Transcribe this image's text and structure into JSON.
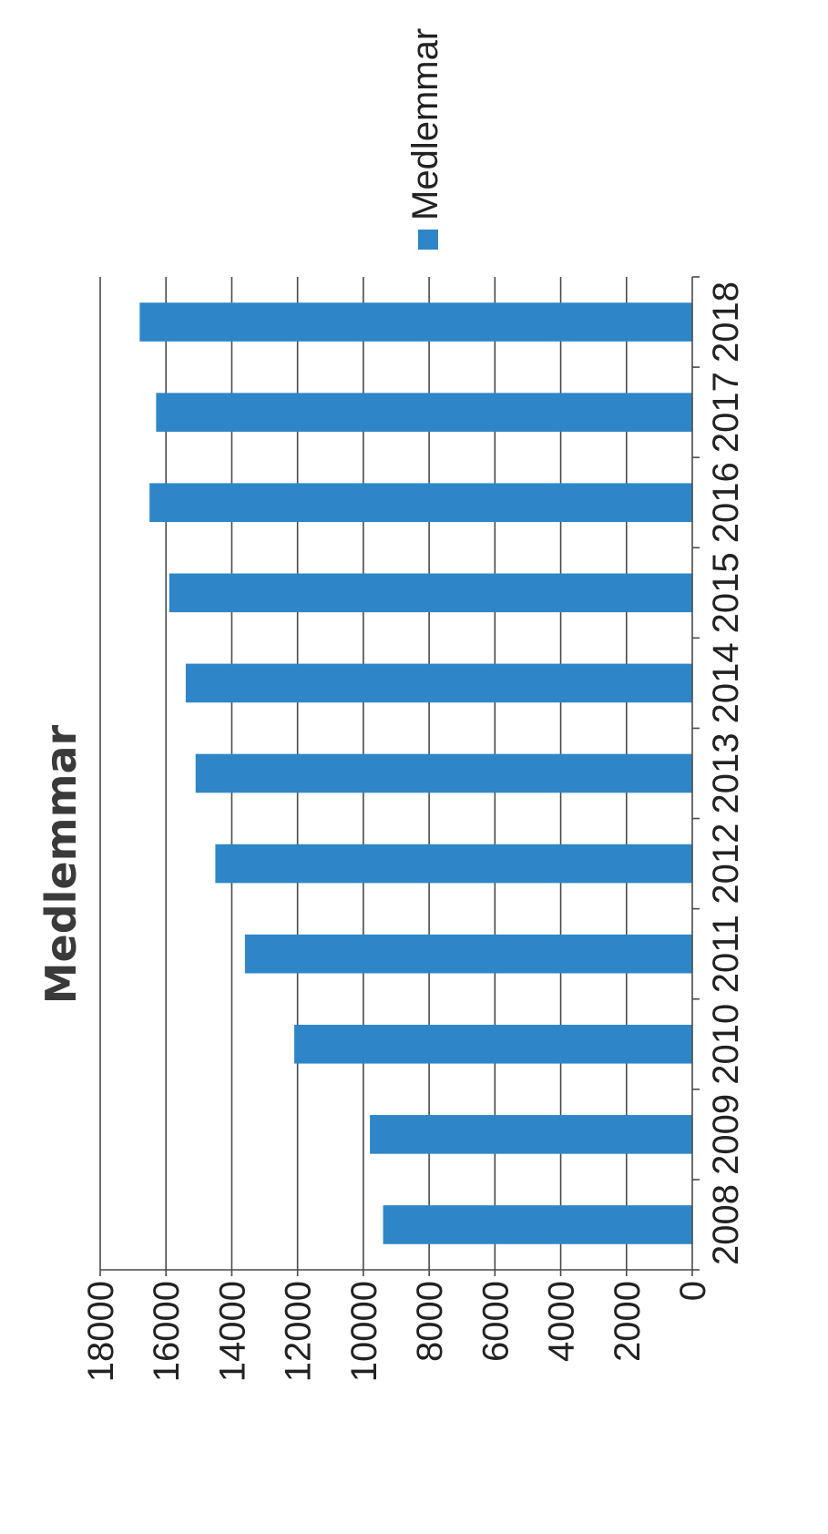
{
  "chart_data": {
    "type": "bar",
    "orientation": "vertical",
    "title": "Medlemmar",
    "xlabel": "",
    "ylabel": "",
    "categories": [
      "2008",
      "2009",
      "2010",
      "2011",
      "2012",
      "2013",
      "2014",
      "2015",
      "2016",
      "2017",
      "2018"
    ],
    "series": [
      {
        "name": "Medlemmar",
        "color": "#2e86c9",
        "values": [
          9400,
          9800,
          12100,
          13600,
          14500,
          15100,
          15400,
          15900,
          16500,
          16300,
          16800
        ]
      }
    ],
    "ylim": [
      0,
      18000
    ],
    "y_ticks": [
      "0",
      "2000",
      "4000",
      "6000",
      "8000",
      "10000",
      "12000",
      "14000",
      "16000",
      "18000"
    ],
    "grid": true,
    "legend_position": "right"
  }
}
